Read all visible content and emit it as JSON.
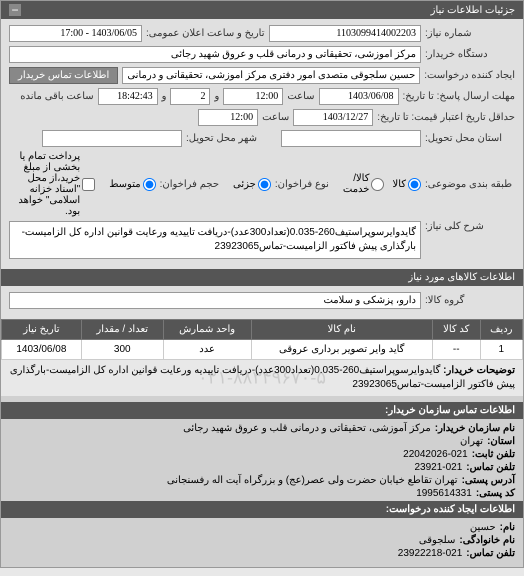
{
  "header": {
    "title": "جزئیات اطلاعات نیاز"
  },
  "form": {
    "request_number_label": "شماره نیاز:",
    "request_number": "1103099414002203",
    "announce_date_label": "تاریخ و ساعت اعلان عمومی:",
    "announce_date": "1403/06/05 - 17:00",
    "buyer_org_label": "دستگاه خریدار:",
    "buyer_org": "مرکز آموزشی، تحقیقاتی و درمانی قلب و عروق شهید رجائی",
    "requester_label": "ایجاد کننده درخواست:",
    "requester": "حسین سلجوقی متصدی امور دفتری مرکز آموزشی، تحقیقاتی و درمانی قلب و ع",
    "contact_btn": "اطلاعات تماس خریدار",
    "deadline_label": "مهلت ارسال پاسخ: تا تاریخ:",
    "deadline_date": "1403/06/08",
    "time_label": "ساعت",
    "deadline_time": "12:00",
    "day_label": "و",
    "remaining_days": "2",
    "remaining_time": "18:42:43",
    "remaining_suffix": "ساعت باقی مانده",
    "validity_label": "حداقل تاریخ اعتبار قیمت: تا تاریخ:",
    "validity_date": "1403/12/27",
    "validity_time": "12:00",
    "delivery_state_label": "استان محل تحویل:",
    "delivery_city_label": "شهر محل تحویل:",
    "pack_type_label": "طبقه بندی موضوعی:",
    "radio_goods": "کالا",
    "radio_service": "کالا/خدمت",
    "radio_credit": "جزئی",
    "radio_medium": "متوسط",
    "partial_label": "نوع فراخوان:",
    "volume_label": "حجم فراخوان:",
    "payment_check": "پرداخت تمام یا بخشی از مبلغ خرید،از محل \"اسناد خزانه اسلامی\" خواهد بود.",
    "tags_label": "شرح کلی نیاز:",
    "tags_text": "گایدوایرسوپراستیف260-0.035(تعداد300عدد)-دریافت تاییدیه ورعایت قوانین اداره کل الزامیست-بارگذاری پیش فاکتور الزامیست-تماس23923065"
  },
  "goods_section": {
    "title": "اطلاعات کالاهای مورد نیاز",
    "group_label": "گروه کالا:",
    "group_value": "دارو، پزشکی و سلامت"
  },
  "table": {
    "headers": [
      "ردیف",
      "کد کالا",
      "نام کالا",
      "واحد شمارش",
      "تعداد / مقدار",
      "تاریخ نیاز"
    ],
    "rows": [
      {
        "idx": "1",
        "code": "--",
        "name": "گاید وایر تصویر برداری عروقی",
        "unit": "عدد",
        "qty": "300",
        "date": "1403/06/08"
      }
    ],
    "desc_label": "توضیحات خریدار:",
    "desc_text": "گایدوایرسوپراستیف260-0.035(تعداد300عدد)-دریافت تاییدیه ورعایت قوانین اداره کل الزامیست-بارگذاری پیش فاکتور الزامیست-تماس23923065",
    "watermark": "۰۲۱-۸۸۳۴۹۶۷۰-۵"
  },
  "contact": {
    "org_header": "اطلاعات تماس سازمان خریدار:",
    "org_name_label": "نام سازمان خریدار:",
    "org_name": "مرکز آموزشی، تحقیقاتی و درمانی قلب و عروق شهید رجائی",
    "state_label": "استان:",
    "state": "تهران",
    "phone_label": "تلفن ثابت:",
    "phone": "22042026-021",
    "fax_label": "تلفن تماس:",
    "fax": "23921-021",
    "address_label": "آدرس پستی:",
    "address": "تهران تقاطع خیابان حضرت ولی عصر(عج) و بزرگراه آیت اله رفسنجانی",
    "postal_label": "کد پستی:",
    "postal": "1995614331",
    "creator_header": "اطلاعات ایجاد کننده درخواست:",
    "name_label": "نام:",
    "name": "حسین",
    "family_label": "نام خانوادگی:",
    "family": "سلجوقی",
    "creator_phone_label": "تلفن تماس:",
    "creator_phone": "23922218-021"
  }
}
